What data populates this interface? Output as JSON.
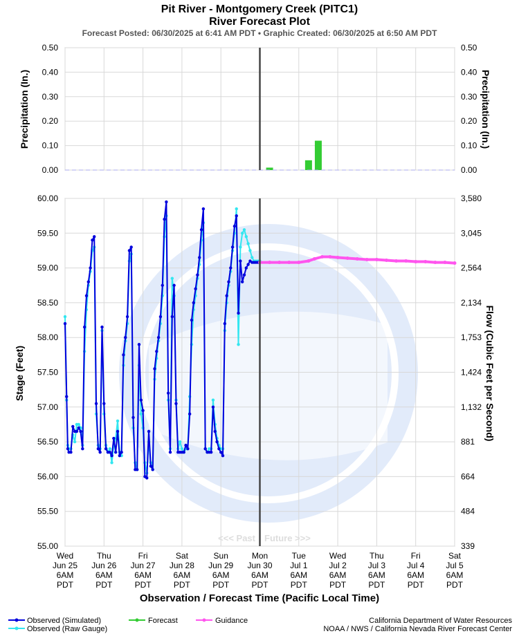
{
  "header": {
    "title": "Pit River - Montgomery Creek (PITC1)",
    "subtitle": "River Forecast Plot",
    "posted": "Forecast Posted: 06/30/2025 at 6:41 AM PDT  •  Graphic Created: 06/30/2025 at 6:50 AM PDT"
  },
  "chart_data": {
    "type": "line",
    "x_axis": {
      "label": "Observation / Forecast Time (Pacific Local Time)",
      "ticks": [
        [
          "Wed",
          "Jun 25",
          "6AM",
          "PDT"
        ],
        [
          "Thu",
          "Jun 26",
          "6AM",
          "PDT"
        ],
        [
          "Fri",
          "Jun 27",
          "6AM",
          "PDT"
        ],
        [
          "Sat",
          "Jun 28",
          "6AM",
          "PDT"
        ],
        [
          "Sun",
          "Jun 29",
          "6AM",
          "PDT"
        ],
        [
          "Mon",
          "Jun 30",
          "6AM",
          "PDT"
        ],
        [
          "Tue",
          "Jul 1",
          "6AM",
          "PDT"
        ],
        [
          "Wed",
          "Jul 2",
          "6AM",
          "PDT"
        ],
        [
          "Thu",
          "Jul 3",
          "6AM",
          "PDT"
        ],
        [
          "Fri",
          "Jul 4",
          "6AM",
          "PDT"
        ],
        [
          "Sat",
          "Jul 5",
          "6AM",
          "PDT"
        ]
      ],
      "range_days": [
        0,
        10
      ],
      "now_day": 5,
      "past_label": "<<< Past",
      "future_label": "Future >>>"
    },
    "precip_panel": {
      "ylabel_left": "Precipitation (In.)",
      "ylabel_right": "Precipitation (In.)",
      "ylim": [
        0,
        0.5
      ],
      "yticks": [
        "0.00",
        "0.10",
        "0.20",
        "0.30",
        "0.40",
        "0.50"
      ],
      "forecast_bars": [
        {
          "day": 5.25,
          "value": 0.01
        },
        {
          "day": 6.25,
          "value": 0.04
        },
        {
          "day": 6.5,
          "value": 0.12
        }
      ]
    },
    "stage_panel": {
      "ylabel_left": "Stage (Feet)",
      "ylabel_right": "Flow (Cubic Feet per Second)",
      "ylim": [
        55.0,
        60.0
      ],
      "yticks_left": [
        "55.00",
        "55.50",
        "56.00",
        "56.50",
        "57.00",
        "57.50",
        "58.00",
        "58.50",
        "59.00",
        "59.50",
        "60.00"
      ],
      "yticks_right": [
        "339",
        "484",
        "664",
        "881",
        "1,132",
        "1,424",
        "1,753",
        "2,134",
        "2,564",
        "3,045",
        "3,580"
      ],
      "series": [
        {
          "name": "Observed (Simulated)",
          "color": "#0000dd",
          "x": [
            0.0,
            0.04,
            0.07,
            0.1,
            0.15,
            0.2,
            0.25,
            0.3,
            0.35,
            0.4,
            0.45,
            0.5,
            0.55,
            0.6,
            0.65,
            0.7,
            0.75,
            0.8,
            0.85,
            0.9,
            0.95,
            1.0,
            1.05,
            1.1,
            1.15,
            1.2,
            1.25,
            1.3,
            1.35,
            1.4,
            1.45,
            1.5,
            1.55,
            1.6,
            1.65,
            1.7,
            1.75,
            1.8,
            1.85,
            1.9,
            1.95,
            2.0,
            2.05,
            2.1,
            2.15,
            2.2,
            2.25,
            2.3,
            2.35,
            2.4,
            2.45,
            2.5,
            2.55,
            2.6,
            2.65,
            2.7,
            2.75,
            2.8,
            2.85,
            2.9,
            2.95,
            3.0,
            3.05,
            3.1,
            3.15,
            3.2,
            3.25,
            3.3,
            3.35,
            3.4,
            3.45,
            3.5,
            3.55,
            3.6,
            3.65,
            3.7,
            3.75,
            3.8,
            3.85,
            3.9,
            3.95,
            4.0,
            4.05,
            4.1,
            4.15,
            4.2,
            4.25,
            4.3,
            4.35,
            4.4,
            4.45,
            4.5,
            4.55,
            4.6,
            4.65,
            4.7,
            4.75,
            4.8,
            4.85,
            4.9,
            4.95,
            5.0
          ],
          "y": [
            58.2,
            57.15,
            56.4,
            56.35,
            56.35,
            56.72,
            56.65,
            56.65,
            56.7,
            56.65,
            56.4,
            58.15,
            58.6,
            58.8,
            59.0,
            59.4,
            59.45,
            57.05,
            56.4,
            56.35,
            58.15,
            57.05,
            56.4,
            56.35,
            56.35,
            56.3,
            56.55,
            56.35,
            56.65,
            56.3,
            56.35,
            57.75,
            58.0,
            58.3,
            59.25,
            59.3,
            56.85,
            56.1,
            56.1,
            57.9,
            57.1,
            56.95,
            56.0,
            55.98,
            56.65,
            56.15,
            56.1,
            57.55,
            57.8,
            58.0,
            58.3,
            58.75,
            59.7,
            59.95,
            57.2,
            56.35,
            58.3,
            58.75,
            57.05,
            56.35,
            56.35,
            56.35,
            56.35,
            56.45,
            56.4,
            56.9,
            58.25,
            58.5,
            58.7,
            58.9,
            59.15,
            59.55,
            59.85,
            56.4,
            56.35,
            56.35,
            56.35,
            57.0,
            56.65,
            56.5,
            56.4,
            56.35,
            56.3,
            58.2,
            58.6,
            58.8,
            59.0,
            59.3,
            59.6,
            59.75,
            58.35,
            59.1,
            58.8,
            58.9,
            59.0,
            59.05,
            59.1,
            59.08,
            59.08,
            59.08,
            59.08,
            59.08
          ]
        },
        {
          "name": "Observed (Raw Gauge)",
          "color": "#33e6f0",
          "x": [
            0.0,
            0.04,
            0.07,
            0.1,
            0.15,
            0.2,
            0.25,
            0.3,
            0.35,
            0.4,
            0.45,
            0.5,
            0.55,
            0.6,
            0.65,
            0.7,
            0.75,
            0.8,
            0.85,
            0.9,
            0.95,
            1.0,
            1.05,
            1.1,
            1.15,
            1.2,
            1.25,
            1.3,
            1.35,
            1.4,
            1.45,
            1.5,
            1.55,
            1.6,
            1.65,
            1.7,
            1.75,
            1.8,
            1.85,
            1.9,
            1.95,
            2.0,
            2.05,
            2.1,
            2.15,
            2.2,
            2.25,
            2.3,
            2.35,
            2.4,
            2.45,
            2.5,
            2.55,
            2.6,
            2.65,
            2.7,
            2.75,
            2.8,
            2.85,
            2.9,
            2.95,
            3.0,
            3.05,
            3.1,
            3.15,
            3.2,
            3.25,
            3.3,
            3.35,
            3.4,
            3.45,
            3.5,
            3.55,
            3.6,
            3.65,
            3.7,
            3.75,
            3.8,
            3.85,
            3.9,
            3.95,
            4.0,
            4.05,
            4.1,
            4.15,
            4.2,
            4.25,
            4.3,
            4.35,
            4.4,
            4.45,
            4.5,
            4.55,
            4.6,
            4.65,
            4.7,
            4.75,
            4.8,
            4.85,
            4.9,
            4.95,
            5.0
          ],
          "y": [
            58.3,
            57.1,
            56.45,
            56.4,
            56.4,
            56.6,
            56.5,
            56.75,
            56.75,
            56.7,
            56.45,
            57.8,
            58.4,
            58.75,
            58.95,
            59.25,
            59.3,
            56.9,
            56.45,
            56.4,
            58.1,
            56.9,
            56.45,
            56.35,
            56.4,
            56.2,
            56.45,
            56.55,
            56.8,
            56.35,
            56.3,
            57.6,
            57.95,
            58.2,
            59.1,
            59.2,
            56.7,
            56.2,
            56.1,
            57.6,
            56.9,
            56.7,
            56.2,
            56.05,
            56.5,
            56.2,
            56.1,
            57.4,
            57.7,
            57.95,
            58.2,
            58.6,
            59.45,
            59.75,
            57.1,
            56.4,
            58.85,
            58.6,
            57.1,
            56.4,
            56.5,
            56.4,
            56.35,
            56.4,
            56.4,
            57.15,
            57.9,
            58.4,
            58.6,
            58.85,
            59.05,
            59.4,
            59.65,
            56.4,
            56.35,
            56.4,
            56.4,
            57.1,
            56.75,
            56.55,
            56.45,
            56.4,
            56.4,
            58.1,
            58.5,
            58.75,
            58.95,
            59.25,
            59.5,
            59.85,
            57.9,
            59.3,
            59.5,
            59.55,
            59.45,
            59.35,
            59.25,
            59.15,
            59.1,
            59.1,
            59.1,
            59.1
          ]
        },
        {
          "name": "Guidance",
          "color": "#ff55ee",
          "x": [
            5.0,
            5.25,
            5.5,
            5.75,
            6.0,
            6.25,
            6.4,
            6.6,
            6.8,
            7.0,
            7.25,
            7.5,
            7.75,
            8.0,
            8.25,
            8.5,
            8.75,
            9.0,
            9.25,
            9.5,
            9.75,
            10.0
          ],
          "y": [
            59.08,
            59.08,
            59.08,
            59.08,
            59.08,
            59.1,
            59.13,
            59.16,
            59.16,
            59.15,
            59.14,
            59.13,
            59.12,
            59.12,
            59.11,
            59.1,
            59.1,
            59.09,
            59.09,
            59.08,
            59.08,
            59.07
          ]
        }
      ]
    },
    "legend": [
      {
        "name": "Observed (Simulated)",
        "color": "#0000dd"
      },
      {
        "name": "Observed (Raw Gauge)",
        "color": "#33e6f0"
      },
      {
        "name": "Forecast",
        "color": "#33cc33"
      },
      {
        "name": "Guidance",
        "color": "#ff55ee"
      }
    ]
  },
  "footer": {
    "agency1": "California Department of Water Resources",
    "agency2": "NOAA / NWS / California Nevada River Forecast Center"
  }
}
